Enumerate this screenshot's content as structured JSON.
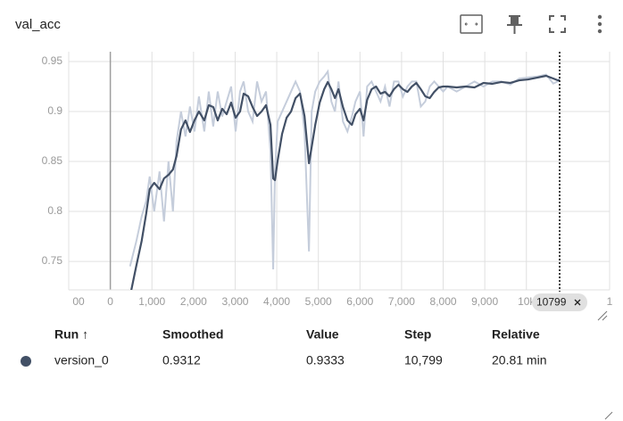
{
  "chart_data": {
    "type": "line",
    "title": "val_acc",
    "x": [
      473,
      624,
      753,
      860,
      946,
      1054,
      1183,
      1290,
      1398,
      1505,
      1591,
      1699,
      1806,
      1914,
      2022,
      2129,
      2258,
      2366,
      2473,
      2581,
      2688,
      2796,
      2903,
      3011,
      3118,
      3204,
      3312,
      3419,
      3527,
      3634,
      3742,
      3849,
      3914,
      3957,
      4022,
      4129,
      4237,
      4344,
      4452,
      4559,
      4667,
      4774,
      4839,
      4925,
      5032,
      5140,
      5226,
      5312,
      5398,
      5484,
      5591,
      5699,
      5806,
      5892,
      6000,
      6086,
      6172,
      6279,
      6387,
      6494,
      6602,
      6710,
      6817,
      6925,
      7032,
      7140,
      7247,
      7355,
      7462,
      7570,
      7677,
      7785,
      7892,
      8000,
      8108,
      8323,
      8538,
      8753,
      8968,
      9183,
      9398,
      9613,
      9828,
      10043,
      10258,
      10473,
      10645,
      10753,
      10799
    ],
    "series": [
      {
        "name": "version_0",
        "color": "#425066",
        "raw_color": "#c5cddb",
        "values": [
          0.715,
          0.7455,
          0.7705,
          0.7973,
          0.8223,
          0.8286,
          0.8223,
          0.833,
          0.8366,
          0.842,
          0.8554,
          0.8821,
          0.8911,
          0.8795,
          0.8911,
          0.9,
          0.8911,
          0.9063,
          0.9045,
          0.8911,
          0.9027,
          0.8973,
          0.9089,
          0.8938,
          0.9,
          0.9179,
          0.9152,
          0.9045,
          0.8955,
          0.9,
          0.9063,
          0.8866,
          0.833,
          0.8313,
          0.8509,
          0.8777,
          0.8938,
          0.9,
          0.9134,
          0.9179,
          0.8955,
          0.8482,
          0.8643,
          0.8866,
          0.9089,
          0.9223,
          0.9295,
          0.9223,
          0.9134,
          0.9223,
          0.9045,
          0.8911,
          0.8866,
          0.8973,
          0.9027,
          0.8911,
          0.9116,
          0.9223,
          0.925,
          0.9179,
          0.9196,
          0.9152,
          0.9223,
          0.9268,
          0.9223,
          0.9196,
          0.925,
          0.9286,
          0.9223,
          0.9152,
          0.9134,
          0.9196,
          0.9241,
          0.925,
          0.925,
          0.9241,
          0.925,
          0.9241,
          0.9286,
          0.9277,
          0.9295,
          0.9286,
          0.9312,
          0.9321,
          0.9339,
          0.9357,
          0.933,
          0.9312,
          0.9312
        ],
        "raw": [
          0.745,
          0.77,
          0.795,
          0.81,
          0.835,
          0.8,
          0.84,
          0.79,
          0.85,
          0.8,
          0.87,
          0.9,
          0.875,
          0.905,
          0.88,
          0.915,
          0.88,
          0.92,
          0.885,
          0.92,
          0.895,
          0.91,
          0.925,
          0.88,
          0.92,
          0.93,
          0.9,
          0.89,
          0.93,
          0.91,
          0.92,
          0.86,
          0.742,
          0.84,
          0.89,
          0.9,
          0.91,
          0.92,
          0.93,
          0.92,
          0.88,
          0.76,
          0.9,
          0.92,
          0.93,
          0.935,
          0.94,
          0.91,
          0.9,
          0.93,
          0.89,
          0.88,
          0.895,
          0.91,
          0.92,
          0.875,
          0.925,
          0.93,
          0.92,
          0.91,
          0.925,
          0.905,
          0.93,
          0.93,
          0.915,
          0.925,
          0.93,
          0.93,
          0.905,
          0.91,
          0.925,
          0.93,
          0.925,
          0.92,
          0.925,
          0.92,
          0.925,
          0.93,
          0.925,
          0.93,
          0.93,
          0.927,
          0.933,
          0.934,
          0.935,
          0.937,
          0.928,
          0.93,
          0.9333
        ]
      }
    ],
    "xlim": [
      -1000,
      12000
    ],
    "xticks": [
      {
        "value": -1000,
        "label": "00"
      },
      0,
      {
        "value": 1000,
        "label": "1,000"
      },
      {
        "value": 2000,
        "label": "2,000"
      },
      {
        "value": 3000,
        "label": "3,000"
      },
      {
        "value": 4000,
        "label": "4,000"
      },
      {
        "value": 5000,
        "label": "5,000"
      },
      {
        "value": 6000,
        "label": "6,000"
      },
      {
        "value": 7000,
        "label": "7,000"
      },
      {
        "value": 8000,
        "label": "8,000"
      },
      {
        "value": 9000,
        "label": "9,000"
      },
      {
        "value": 10000,
        "label": "10k"
      },
      {
        "value": 12000,
        "label": "1"
      }
    ],
    "ylim": [
      0.7215,
      0.9598
    ],
    "yticks": [
      0.75,
      0.8,
      0.85,
      0.9,
      0.95
    ],
    "grid": true,
    "cursor_step": 10799
  },
  "table": {
    "columns": [
      "Run ↑",
      "Smoothed",
      "Value",
      "Step",
      "Relative"
    ],
    "rows": [
      [
        "version_0",
        "0.9312",
        "0.9333",
        "10,799",
        "20.81 min"
      ]
    ]
  }
}
